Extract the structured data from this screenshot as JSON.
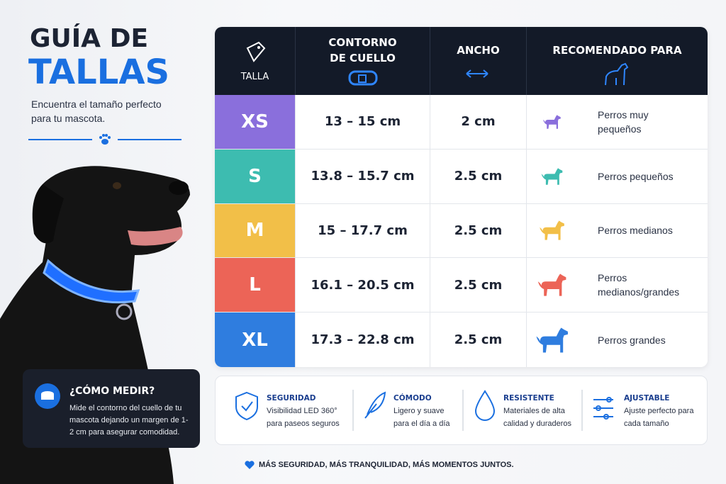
{
  "header": {
    "title_line1": "GUÍA DE",
    "title_line2": "TALLAS",
    "subtitle": "Encuentra el tamaño perfecto para tu mascota."
  },
  "table": {
    "columns": [
      "TALLA",
      "CONTORNO DE CUELLO",
      "ANCHO",
      "RECOMENDADO PARA"
    ],
    "rows": [
      [
        "XS",
        "13 – 15 cm",
        "2 cm",
        "Perros muy pequeños"
      ],
      [
        "S",
        "13.8 – 15.7 cm",
        "2.5 cm",
        "Perros pequeños"
      ],
      [
        "M",
        "15 – 17.7 cm",
        "2.5 cm",
        "Perros medianos"
      ],
      [
        "L",
        "16.1 – 20.5 cm",
        "2.5 cm",
        "Perros medianos/grandes"
      ],
      [
        "XL",
        "17.3 – 22.8 cm",
        "2.5 cm",
        "Perros grandes"
      ]
    ]
  },
  "measure": {
    "title": "¿CÓMO MEDIR?",
    "text": "Mide el contorno del cuello de tu mascota dejando un margen de 1-2 cm para asegurar comodidad."
  },
  "features": [
    {
      "title": "SEGURIDAD",
      "text": "Visibilidad LED 360° para paseos seguros"
    },
    {
      "title": "CÓMODO",
      "text": "Ligero y suave para el día a día"
    },
    {
      "title": "RESISTENTE",
      "text": "Materiales de alta calidad y duraderos"
    },
    {
      "title": "AJUSTABLE",
      "text": "Ajuste perfecto para cada tamaño"
    }
  ],
  "footer": "MÁS SEGURIDAD, MÁS TRANQUILIDAD, MÁS MOMENTOS JUNTOS."
}
